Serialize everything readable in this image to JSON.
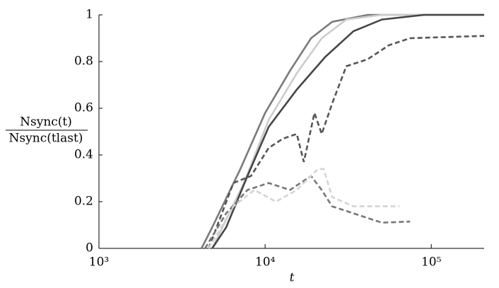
{
  "chart_data": {
    "type": "line",
    "xlabel": "t",
    "ylabel_numerator": "Nsync(t)",
    "ylabel_denominator": "Nsync(tlast)",
    "xscale": "log",
    "xlim": [
      1000,
      208000
    ],
    "ylim": [
      0,
      1
    ],
    "xticks": [
      {
        "value": 1000,
        "label": "10³"
      },
      {
        "value": 10000,
        "label": "10⁴"
      },
      {
        "value": 100000,
        "label": "10⁵"
      }
    ],
    "yticks": [
      0,
      0.2,
      0.4,
      0.6,
      0.8,
      1
    ],
    "series": [
      {
        "color": "#7a7a7a",
        "dash": false,
        "x": [
          4140,
          4800,
          7100,
          10000,
          14100,
          18900,
          25300,
          41400,
          208000
        ],
        "values": [
          0,
          0.09,
          0.34,
          0.58,
          0.76,
          0.9,
          0.97,
          1,
          1
        ]
      },
      {
        "color": "#cccccc",
        "dash": false,
        "x": [
          4800,
          5040,
          7450,
          10500,
          15500,
          21900,
          30800,
          50400,
          208000
        ],
        "values": [
          0,
          0.03,
          0.28,
          0.55,
          0.75,
          0.9,
          0.98,
          1,
          1
        ]
      },
      {
        "color": "#454545",
        "dash": false,
        "x": [
          4800,
          5830,
          7830,
          10500,
          15500,
          23000,
          34000,
          50400,
          90600,
          208000
        ],
        "values": [
          0,
          0.09,
          0.31,
          0.52,
          0.68,
          0.82,
          0.93,
          0.98,
          1,
          1
        ]
      },
      {
        "color": "#555555",
        "dash": true,
        "x": [
          4570,
          6440,
          8220,
          10500,
          12800,
          15500,
          17100,
          19800,
          21900,
          25300,
          30800,
          41400,
          55600,
          74500,
          208000
        ],
        "values": [
          0,
          0.28,
          0.31,
          0.43,
          0.47,
          0.49,
          0.37,
          0.58,
          0.49,
          0.62,
          0.78,
          0.81,
          0.87,
          0.9,
          0.91
        ]
      },
      {
        "color": "#777777",
        "dash": true,
        "x": [
          4350,
          5830,
          7830,
          10500,
          14100,
          18900,
          21900,
          25300,
          34000,
          50400,
          74500
        ],
        "values": [
          0,
          0.15,
          0.25,
          0.28,
          0.25,
          0.31,
          0.25,
          0.18,
          0.15,
          0.11,
          0.115
        ]
      },
      {
        "color": "#d4d4d4",
        "dash": true,
        "x": [
          4570,
          6440,
          8630,
          11600,
          15500,
          20800,
          22500,
          25300,
          34000,
          64400
        ],
        "values": [
          0,
          0.18,
          0.25,
          0.2,
          0.25,
          0.34,
          0.34,
          0.22,
          0.18,
          0.18
        ]
      }
    ]
  }
}
